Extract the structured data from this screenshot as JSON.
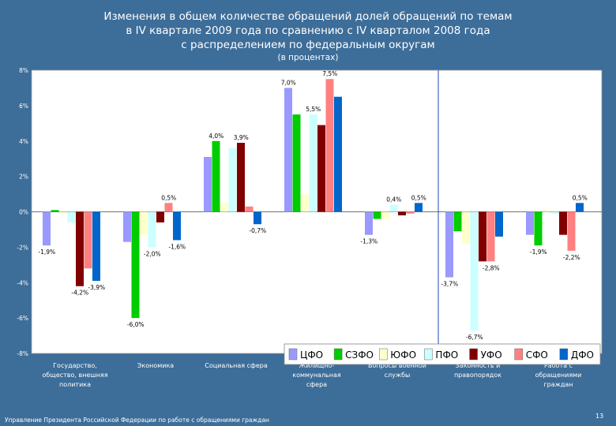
{
  "slide": {
    "title_lines": [
      "Изменения в общем количестве обращений долей обращений по темам",
      "в IV квартале 2009 года по сравнению с IV кварталом 2008 года",
      "с распределением по федеральным округам"
    ],
    "subtitle": "(в процентах)",
    "footer": "Управление Президента Российской Федерации по работе с обращениями граждан",
    "page_number": "13"
  },
  "colors": {
    "background": "#3d6d99",
    "plot_bg": "#ffffff",
    "text": "#ffffff",
    "separator": "#2244bb"
  },
  "chart_data": {
    "type": "bar",
    "title": "Изменения в общем количестве обращений долей обращений по темам в IV квартале 2009 года по сравнению с IV кварталом 2008 года с распределением по федеральным округам",
    "ylabel": "(в процентах)",
    "ylim": [
      -8,
      8
    ],
    "yticks": [
      8,
      6,
      4,
      2,
      0,
      -2,
      -4,
      -6,
      -8
    ],
    "ytick_labels": [
      "8%",
      "6%",
      "4%",
      "2%",
      "0%",
      "-2%",
      "-4%",
      "-6%",
      "-8%"
    ],
    "grid": false,
    "legend_position": "bottom-right",
    "categories": [
      "Государство, общество, внешняя политика",
      "Экономика",
      "Социальная сфера",
      "Жилищно-коммунальная сфера",
      "Вопросы военной службы",
      "Законность и правопорядок",
      "Работа с обращениями граждан"
    ],
    "category_lines": [
      [
        "Государство,",
        "общество, внешняя",
        "политика"
      ],
      [
        "Экономика"
      ],
      [
        "Социальная сфера"
      ],
      [
        "Жилищно-",
        "коммунальная",
        "сфера"
      ],
      [
        "Вопросы военной",
        "службы"
      ],
      [
        "Законность и",
        "правопорядок"
      ],
      [
        "Работа с",
        "обращениями",
        "граждан"
      ]
    ],
    "series": [
      {
        "name": "ЦФО",
        "color": "#9999ff",
        "values": [
          -1.9,
          -1.7,
          3.1,
          7.0,
          -1.3,
          -3.7,
          -1.3
        ]
      },
      {
        "name": "СЗФО",
        "color": "#00cc00",
        "values": [
          0.1,
          -6.0,
          4.0,
          5.5,
          -0.4,
          -1.1,
          -1.9
        ]
      },
      {
        "name": "ЮФО",
        "color": "#ffffcc",
        "values": [
          -0.1,
          -1.3,
          0.5,
          1.0,
          -0.4,
          -1.8,
          0.1
        ]
      },
      {
        "name": "ПФО",
        "color": "#ccffff",
        "values": [
          -0.6,
          -2.0,
          3.6,
          5.5,
          0.4,
          -6.7,
          -0.1
        ]
      },
      {
        "name": "УФО",
        "color": "#800000",
        "values": [
          -4.2,
          -0.6,
          3.9,
          4.9,
          -0.2,
          -2.8,
          -1.3
        ]
      },
      {
        "name": "СФО",
        "color": "#ff8080",
        "values": [
          -3.2,
          0.5,
          0.3,
          7.5,
          -0.1,
          -2.8,
          -2.2
        ]
      },
      {
        "name": "ДФО",
        "color": "#0066cc",
        "values": [
          -3.9,
          -1.6,
          -0.7,
          6.5,
          0.5,
          -1.4,
          0.5
        ]
      }
    ],
    "data_labels": [
      {
        "category": 0,
        "series": 0,
        "text": "-1,9%"
      },
      {
        "category": 0,
        "series": 4,
        "text": "-4,2%"
      },
      {
        "category": 0,
        "series": 6,
        "text": "-3,9%"
      },
      {
        "category": 1,
        "series": 1,
        "text": "-6,0%"
      },
      {
        "category": 1,
        "series": 3,
        "text": "-2,0%"
      },
      {
        "category": 1,
        "series": 5,
        "text": "0,5%"
      },
      {
        "category": 1,
        "series": 6,
        "text": "-1,6%"
      },
      {
        "category": 2,
        "series": 1,
        "text": "4,0%"
      },
      {
        "category": 2,
        "series": 4,
        "text": "3,9%"
      },
      {
        "category": 2,
        "series": 6,
        "text": "-0,7%"
      },
      {
        "category": 3,
        "series": 0,
        "text": "7,0%"
      },
      {
        "category": 3,
        "series": 3,
        "text": "5,5%"
      },
      {
        "category": 3,
        "series": 5,
        "text": "7,5%"
      },
      {
        "category": 4,
        "series": 0,
        "text": "-1,3%"
      },
      {
        "category": 4,
        "series": 3,
        "text": "0,4%"
      },
      {
        "category": 4,
        "series": 6,
        "text": "0,5%"
      },
      {
        "category": 5,
        "series": 0,
        "text": "-3,7%"
      },
      {
        "category": 5,
        "series": 3,
        "text": "-6,7%"
      },
      {
        "category": 5,
        "series": 5,
        "text": "-2,8%"
      },
      {
        "category": 6,
        "series": 1,
        "text": "-1,9%"
      },
      {
        "category": 6,
        "series": 5,
        "text": "-2,2%"
      },
      {
        "category": 6,
        "series": 6,
        "text": "0,5%"
      }
    ]
  }
}
